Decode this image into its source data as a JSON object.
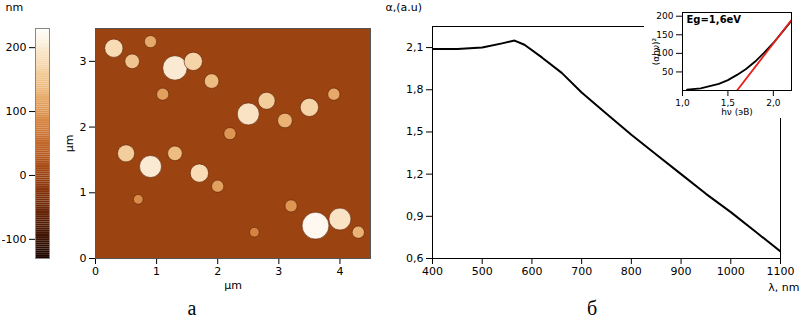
{
  "chart_data": [
    {
      "type": "scatter",
      "panel": "а",
      "x_label": "μm",
      "y_label": "μm",
      "xlim": [
        0,
        4.5
      ],
      "xticks": [
        0,
        1,
        2,
        3,
        4
      ],
      "ylim": [
        0,
        3.5
      ],
      "yticks": [
        0,
        1,
        2,
        3
      ],
      "base_height": 0,
      "x": [
        0.3,
        0.6,
        0.9,
        1.3,
        1.6,
        1.9,
        1.1,
        2.5,
        2.8,
        3.1,
        3.5,
        3.9,
        2.2,
        0.5,
        0.9,
        1.3,
        1.7,
        2.0,
        0.7,
        3.6,
        4.0,
        4.3,
        3.2,
        2.6
      ],
      "y": [
        3.2,
        3.0,
        3.3,
        2.9,
        3.0,
        2.7,
        2.5,
        2.2,
        2.4,
        2.1,
        2.3,
        2.5,
        1.9,
        1.6,
        1.4,
        1.6,
        1.3,
        1.1,
        0.9,
        0.5,
        0.6,
        0.4,
        0.8,
        0.4
      ],
      "radii": [
        0.15,
        0.12,
        0.1,
        0.2,
        0.15,
        0.12,
        0.1,
        0.18,
        0.14,
        0.12,
        0.15,
        0.1,
        0.1,
        0.14,
        0.18,
        0.12,
        0.15,
        0.1,
        0.08,
        0.22,
        0.18,
        0.1,
        0.1,
        0.08
      ],
      "heights": [
        180,
        150,
        120,
        200,
        170,
        140,
        110,
        190,
        160,
        130,
        170,
        120,
        100,
        160,
        200,
        140,
        180,
        110,
        90,
        220,
        190,
        130,
        100,
        80
      ],
      "colorbar": {
        "label": "nm",
        "lim": [
          -130,
          230
        ],
        "ticks": [
          -100,
          0,
          100,
          200
        ]
      }
    },
    {
      "type": "line",
      "panel": "б",
      "x_label": "λ, nm",
      "y_label": "α,(a.u)",
      "color": "#000000",
      "xlim": [
        400,
        1100
      ],
      "xticks": [
        400,
        500,
        600,
        700,
        800,
        900,
        1000,
        1100
      ],
      "ylim": [
        0.6,
        2.25
      ],
      "yticks": [
        {
          "value": 0.6,
          "label": "0,6"
        },
        {
          "value": 0.9,
          "label": "0,9"
        },
        {
          "value": 1.2,
          "label": "1,2"
        },
        {
          "value": 1.5,
          "label": "1,5"
        },
        {
          "value": 1.8,
          "label": "1,8"
        },
        {
          "value": 2.1,
          "label": "2,1"
        }
      ],
      "x": [
        400,
        450,
        500,
        540,
        565,
        585,
        620,
        660,
        700,
        750,
        800,
        850,
        900,
        950,
        1000,
        1050,
        1100
      ],
      "values": [
        2.09,
        2.09,
        2.1,
        2.13,
        2.15,
        2.12,
        2.03,
        1.92,
        1.78,
        1.63,
        1.48,
        1.34,
        1.2,
        1.06,
        0.93,
        0.79,
        0.65
      ]
    },
    {
      "type": "line",
      "title": "Eg=1,6eV",
      "x_label": "hν (эВ)",
      "y_label": "(αhν)²",
      "xlim": [
        1.0,
        2.2
      ],
      "xticks": [
        {
          "value": 1.0,
          "label": "1,0"
        },
        {
          "value": 1.5,
          "label": "1,5"
        },
        {
          "value": 2.0,
          "label": "2,0"
        }
      ],
      "ylim": [
        0,
        210
      ],
      "yticks": [
        50,
        100,
        150,
        200
      ],
      "series": [
        {
          "color": "#000000",
          "x": [
            1.05,
            1.2,
            1.4,
            1.5,
            1.6,
            1.7,
            1.8,
            1.9,
            2.0,
            2.1,
            2.2
          ],
          "values": [
            2,
            6,
            18,
            28,
            42,
            58,
            78,
            102,
            128,
            158,
            188
          ]
        },
        {
          "color": "#e8201a",
          "x": [
            1.6,
            2.2
          ],
          "values": [
            0,
            190
          ]
        }
      ]
    }
  ]
}
